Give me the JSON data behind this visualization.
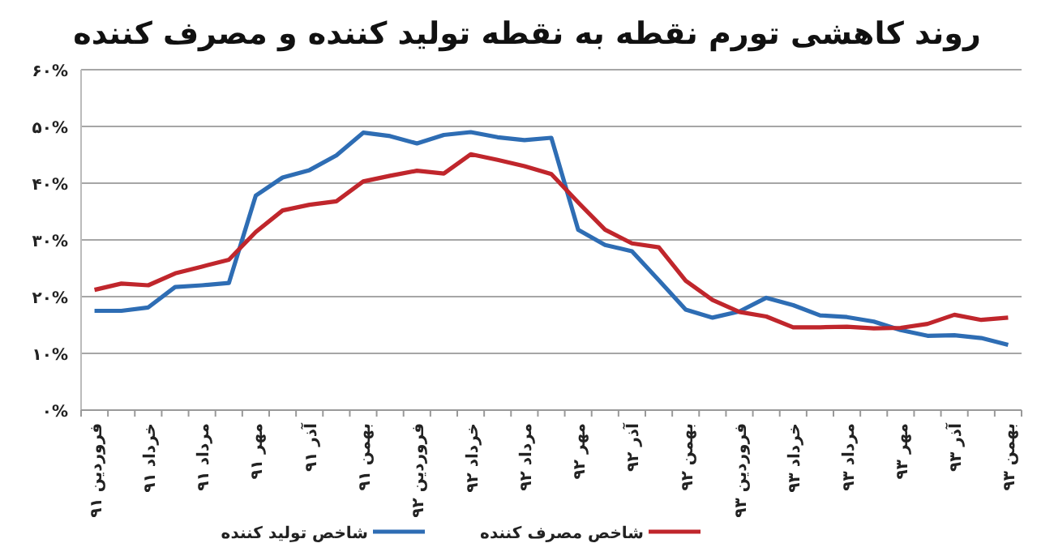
{
  "chart_data": {
    "type": "line",
    "title": "روند کاهشی تورم نقطه به نقطه تولید کننده و مصرف کننده",
    "categories": [
      "فروردین ۹۱",
      null,
      "خرداد ۹۱",
      null,
      "مرداد ۹۱",
      null,
      "مهر ۹۱",
      null,
      "آذر ۹۱",
      null,
      "بهمن ۹۱",
      null,
      "فروردین ۹۲",
      null,
      "خرداد ۹۲",
      null,
      "مرداد ۹۲",
      null,
      "مهر ۹۲",
      null,
      "آذر ۹۲",
      null,
      "بهمن ۹۲",
      null,
      "فروردین ۹۳",
      null,
      "خرداد ۹۳",
      null,
      "مرداد ۹۳",
      null,
      "مهر ۹۳",
      null,
      "آذر ۹۳",
      null,
      "بهمن ۹۳"
    ],
    "series": [
      {
        "name": "شاخص تولید کننده",
        "color": "#2e6db4",
        "values": [
          17.5,
          17.5,
          18.1,
          21.7,
          22.0,
          22.4,
          37.8,
          41.0,
          42.3,
          44.9,
          48.9,
          48.3,
          47.0,
          48.5,
          49.0,
          48.1,
          47.6,
          48.0,
          31.8,
          29.1,
          28.0,
          22.9,
          17.7,
          16.3,
          17.4,
          19.8,
          18.5,
          16.7,
          16.4,
          15.6,
          14.1,
          13.1,
          13.2,
          12.7,
          11.5
        ]
      },
      {
        "name": "شاخص مصرف کننده",
        "color": "#c0262c",
        "values": [
          21.2,
          22.3,
          22.0,
          24.1,
          25.3,
          26.5,
          31.4,
          35.2,
          36.2,
          36.8,
          40.3,
          41.3,
          42.2,
          41.7,
          45.1,
          44.1,
          43.0,
          41.6,
          36.6,
          31.8,
          29.4,
          28.7,
          22.8,
          19.4,
          17.3,
          16.5,
          14.6,
          14.6,
          14.7,
          14.4,
          14.5,
          15.2,
          16.8,
          15.9,
          16.3
        ]
      }
    ],
    "ylim": [
      0,
      60
    ],
    "yticks": [
      {
        "value": 0,
        "label": "۰%"
      },
      {
        "value": 10,
        "label": "۱۰%"
      },
      {
        "value": 20,
        "label": "۲۰%"
      },
      {
        "value": 30,
        "label": "۳۰%"
      },
      {
        "value": 40,
        "label": "۴۰%"
      },
      {
        "value": 50,
        "label": "۵۰%"
      },
      {
        "value": 60,
        "label": "۶۰%"
      }
    ],
    "grid": "y",
    "legend": "bottom",
    "marker": "none",
    "line_style": "solid"
  }
}
